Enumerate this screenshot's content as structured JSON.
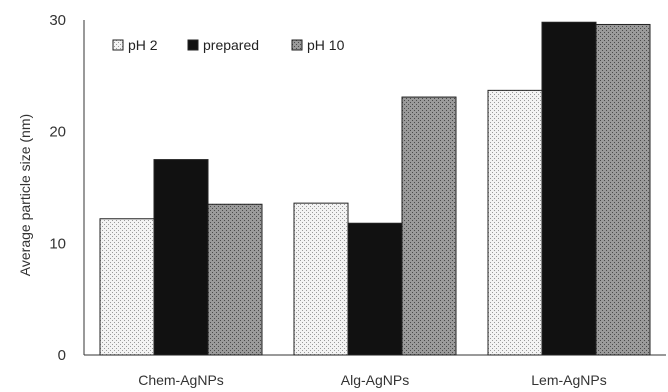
{
  "chart_data": {
    "type": "bar",
    "title": "",
    "xlabel": "",
    "ylabel": "Average particle  size (nm)",
    "ylim": [
      0,
      30
    ],
    "yticks": [
      0,
      10,
      20,
      30
    ],
    "grid": false,
    "legend_position": "top-left",
    "categories": [
      "Chem-AgNPs",
      "Alg-AgNPs",
      "Lem-AgNPs"
    ],
    "series": [
      {
        "name": "pH 2",
        "values": [
          12.2,
          13.6,
          23.7
        ],
        "color": "#ececec",
        "pattern": "light-dots"
      },
      {
        "name": "prepared",
        "values": [
          17.5,
          11.8,
          29.8
        ],
        "color": "#111111",
        "pattern": "solid"
      },
      {
        "name": "pH 10",
        "values": [
          13.5,
          23.1,
          29.6
        ],
        "color": "#8c8c8c",
        "pattern": "dark-dots"
      }
    ]
  }
}
